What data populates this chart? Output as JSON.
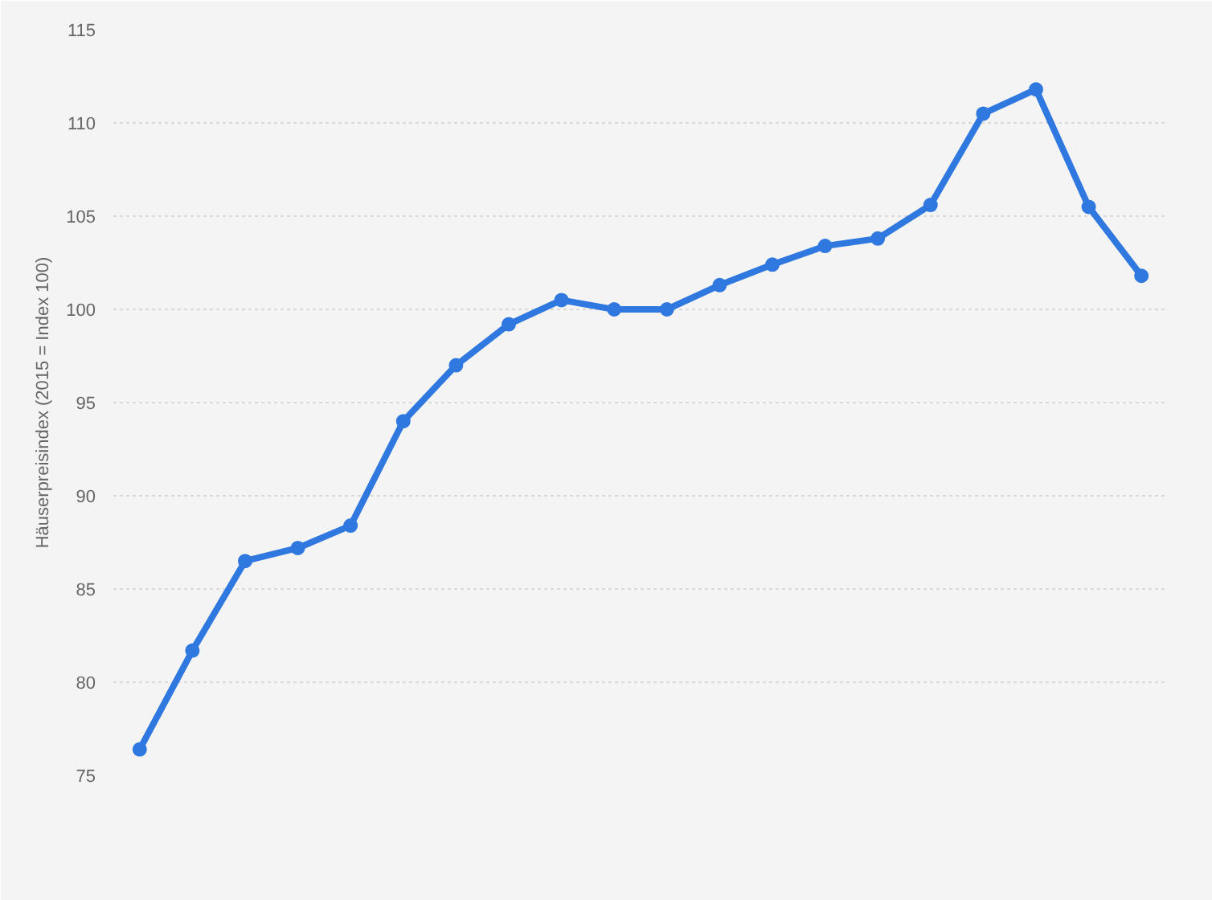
{
  "chart_data": {
    "type": "line",
    "ylabel": "Häuserpreisindex (2015 = Index 100)",
    "categories": [
      null,
      null,
      null,
      null,
      null,
      null,
      null,
      null,
      null,
      null,
      null,
      null,
      null,
      null,
      null,
      null,
      null,
      null,
      null,
      null
    ],
    "series": [
      {
        "color": "#2f78e0",
        "values": [
          76.4,
          81.7,
          86.5,
          87.2,
          88.4,
          94.0,
          97.0,
          99.2,
          100.5,
          100.0,
          100.0,
          101.3,
          102.4,
          103.4,
          103.8,
          105.6,
          110.5,
          111.8,
          105.5,
          101.8
        ]
      }
    ],
    "ylim": [
      75,
      115
    ],
    "yticks": [
      75,
      80,
      85,
      90,
      95,
      100,
      105,
      110,
      115
    ],
    "grid": "y",
    "marker": "circle",
    "line_style": "solid",
    "tick_labels": "y"
  }
}
